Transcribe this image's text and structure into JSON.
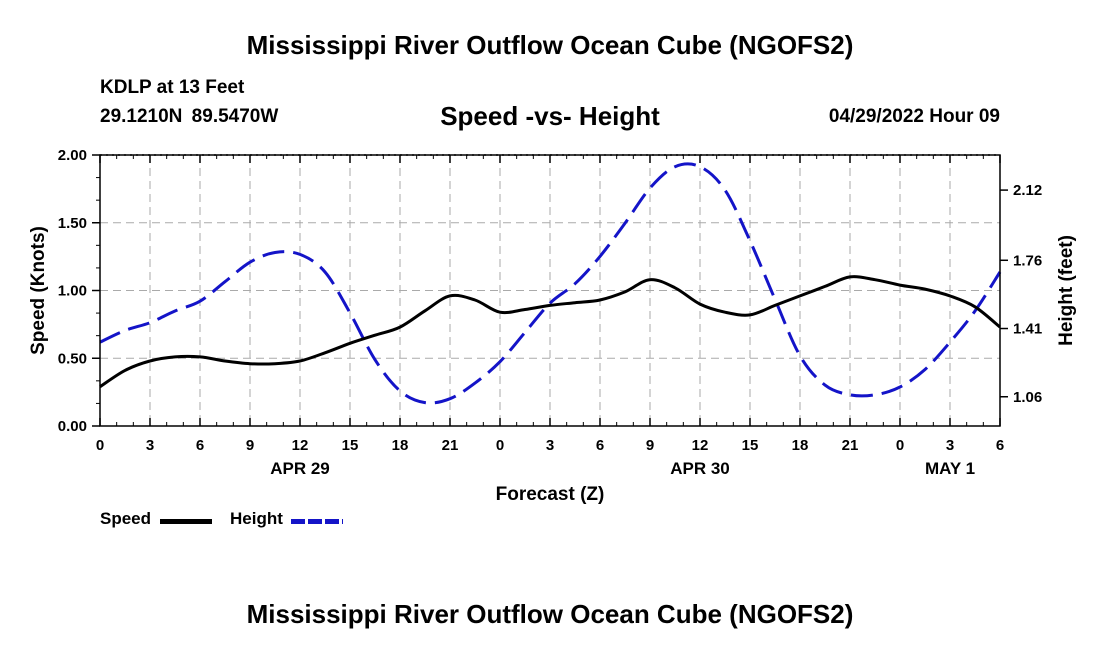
{
  "header": {
    "title": "Mississippi River Outflow Ocean Cube (NGOFS2)",
    "station_name": "KDLP at 13 Feet",
    "coords": "29.1210N  89.5470W",
    "subtitle": "Speed -vs- Height",
    "datetime": "04/29/2022 Hour 09"
  },
  "footer": {
    "title": "Mississippi River Outflow Ocean Cube (NGOFS2)"
  },
  "legend": {
    "speed_label": "Speed",
    "height_label": "Height"
  },
  "colors": {
    "speed": "#000000",
    "height": "#1414c8",
    "grid": "#aaaaaa"
  },
  "chart_data": {
    "type": "line",
    "title": "Speed -vs- Height",
    "xlabel": "Forecast (Z)",
    "ylabel": "Speed (Knots)",
    "y2label": "Height (feet)",
    "xlim": [
      0,
      54
    ],
    "ylim": [
      0,
      2.0
    ],
    "y2lim": [
      0.91,
      2.3
    ],
    "xticks": [
      0,
      3,
      6,
      9,
      12,
      15,
      18,
      21,
      24,
      27,
      30,
      33,
      36,
      39,
      42,
      45,
      48,
      51,
      54
    ],
    "xtick_labels": [
      "0",
      "3",
      "6",
      "9",
      "12",
      "15",
      "18",
      "21",
      "0",
      "3",
      "6",
      "9",
      "12",
      "15",
      "18",
      "21",
      "0",
      "3",
      "6"
    ],
    "date_labels": [
      {
        "label": "APR 29",
        "x": 12
      },
      {
        "label": "APR 30",
        "x": 36
      },
      {
        "label": "MAY 1",
        "x": 51
      }
    ],
    "yticks": [
      0,
      0.5,
      1.0,
      1.5,
      2.0
    ],
    "ytick_labels": [
      "0.00",
      "0.50",
      "1.00",
      "1.50",
      "2.00"
    ],
    "y2ticks": [
      1.06,
      1.41,
      1.76,
      2.12
    ],
    "y2tick_labels": [
      "1.06",
      "1.41",
      "1.76",
      "2.12"
    ],
    "grid": true,
    "series": [
      {
        "name": "Speed",
        "axis": "left",
        "style": "solid",
        "x": [
          0,
          1.5,
          3,
          4.5,
          6,
          7.5,
          9,
          10.5,
          12,
          13.5,
          15,
          16.5,
          18,
          19.5,
          21,
          22.5,
          24,
          25.5,
          27,
          28.5,
          30,
          31.5,
          33,
          34.5,
          36,
          37.5,
          39,
          40.5,
          42,
          43.5,
          45,
          46.5,
          48,
          49.5,
          51,
          52.5,
          54
        ],
        "values": [
          0.29,
          0.41,
          0.48,
          0.51,
          0.51,
          0.48,
          0.46,
          0.46,
          0.48,
          0.54,
          0.61,
          0.67,
          0.73,
          0.85,
          0.96,
          0.93,
          0.84,
          0.86,
          0.89,
          0.91,
          0.93,
          0.99,
          1.08,
          1.02,
          0.9,
          0.84,
          0.82,
          0.89,
          0.96,
          1.03,
          1.1,
          1.08,
          1.04,
          1.01,
          0.96,
          0.88,
          0.73
        ]
      },
      {
        "name": "Height",
        "axis": "right",
        "style": "dashed",
        "x": [
          0,
          1.5,
          3,
          4.5,
          6,
          7.5,
          9,
          10.5,
          12,
          13.5,
          15,
          16.5,
          18,
          19.5,
          21,
          22.5,
          24,
          25.5,
          27,
          28.5,
          30,
          31.5,
          33,
          34.5,
          36,
          37.5,
          39,
          40.5,
          42,
          43.5,
          45,
          46.5,
          48,
          49.5,
          51,
          52.5,
          54
        ],
        "values": [
          1.34,
          1.4,
          1.44,
          1.5,
          1.55,
          1.65,
          1.75,
          1.8,
          1.79,
          1.7,
          1.49,
          1.25,
          1.09,
          1.03,
          1.05,
          1.13,
          1.24,
          1.39,
          1.54,
          1.64,
          1.78,
          1.95,
          2.13,
          2.24,
          2.24,
          2.12,
          1.86,
          1.56,
          1.27,
          1.12,
          1.07,
          1.07,
          1.11,
          1.2,
          1.34,
          1.5,
          1.7
        ]
      }
    ]
  }
}
